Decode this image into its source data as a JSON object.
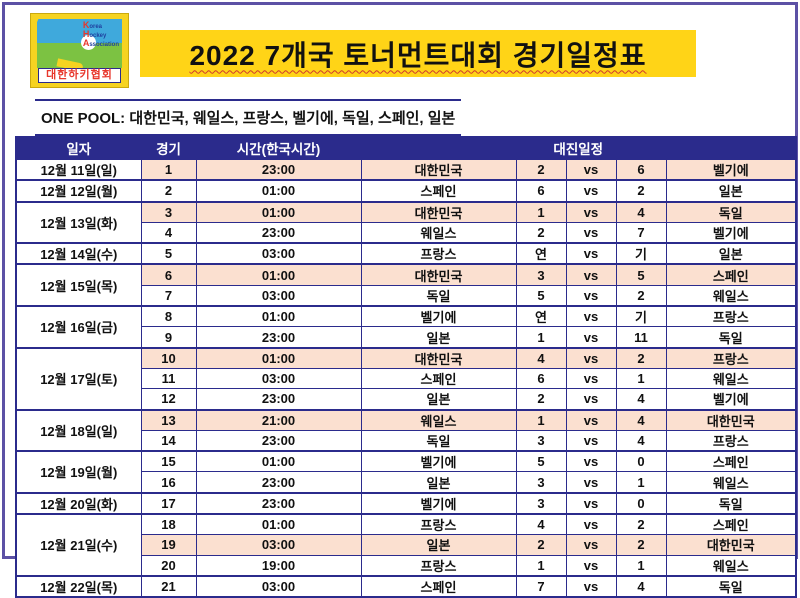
{
  "page": {
    "border_color": "#5c51a5"
  },
  "logo": {
    "org_lines": [
      "Korea",
      "Hockey",
      "Association"
    ],
    "org_name_kr": "대한하키협회",
    "colors": {
      "frame": "#f6d321",
      "sky": "#3fa9dc",
      "green": "#7cc242",
      "text_red": "#e8372c",
      "text_blue": "#1f3f9e"
    }
  },
  "header": {
    "title": "2022 7개국 토너먼트대회 경기일정표",
    "title_bg": "#ffd417"
  },
  "pool": {
    "label": "ONE POOL:",
    "teams": "대한민국, 웨일스, 프랑스, 벨기에, 독일, 스페인, 일본"
  },
  "schedule": {
    "columns": {
      "date": "일자",
      "game": "경기",
      "time": "시간(한국시간)",
      "match": "대진일정"
    },
    "vs": "vs",
    "colors": {
      "header_bg": "#2b2b8c",
      "border": "#2b2b8c",
      "highlight_bg": "#fbe0d0"
    },
    "date_groups": [
      {
        "date": "12월 11일(일)",
        "games": [
          {
            "no": "1",
            "time": "23:00",
            "team1": "대한민국",
            "score1": "2",
            "score2": "6",
            "team2": "벨기에",
            "highlight": true
          }
        ]
      },
      {
        "date": "12월 12일(월)",
        "games": [
          {
            "no": "2",
            "time": "01:00",
            "team1": "스페인",
            "score1": "6",
            "score2": "2",
            "team2": "일본",
            "highlight": false
          }
        ]
      },
      {
        "date": "12월 13일(화)",
        "games": [
          {
            "no": "3",
            "time": "01:00",
            "team1": "대한민국",
            "score1": "1",
            "score2": "4",
            "team2": "독일",
            "highlight": true
          },
          {
            "no": "4",
            "time": "23:00",
            "team1": "웨일스",
            "score1": "2",
            "score2": "7",
            "team2": "벨기에",
            "highlight": false
          }
        ]
      },
      {
        "date": "12월 14일(수)",
        "games": [
          {
            "no": "5",
            "time": "03:00",
            "team1": "프랑스",
            "score1": "연",
            "score2": "기",
            "team2": "일본",
            "highlight": false
          }
        ]
      },
      {
        "date": "12월 15일(목)",
        "games": [
          {
            "no": "6",
            "time": "01:00",
            "team1": "대한민국",
            "score1": "3",
            "score2": "5",
            "team2": "스페인",
            "highlight": true
          },
          {
            "no": "7",
            "time": "03:00",
            "team1": "독일",
            "score1": "5",
            "score2": "2",
            "team2": "웨일스",
            "highlight": false
          }
        ]
      },
      {
        "date": "12월 16일(금)",
        "games": [
          {
            "no": "8",
            "time": "01:00",
            "team1": "벨기에",
            "score1": "연",
            "score2": "기",
            "team2": "프랑스",
            "highlight": false
          },
          {
            "no": "9",
            "time": "23:00",
            "team1": "일본",
            "score1": "1",
            "score2": "11",
            "team2": "독일",
            "highlight": false
          }
        ]
      },
      {
        "date": "12월 17일(토)",
        "games": [
          {
            "no": "10",
            "time": "01:00",
            "team1": "대한민국",
            "score1": "4",
            "score2": "2",
            "team2": "프랑스",
            "highlight": true
          },
          {
            "no": "11",
            "time": "03:00",
            "team1": "스페인",
            "score1": "6",
            "score2": "1",
            "team2": "웨일스",
            "highlight": false
          },
          {
            "no": "12",
            "time": "23:00",
            "team1": "일본",
            "score1": "2",
            "score2": "4",
            "team2": "벨기에",
            "highlight": false
          }
        ]
      },
      {
        "date": "12월 18일(일)",
        "games": [
          {
            "no": "13",
            "time": "21:00",
            "team1": "웨일스",
            "score1": "1",
            "score2": "4",
            "team2": "대한민국",
            "highlight": true
          },
          {
            "no": "14",
            "time": "23:00",
            "team1": "독일",
            "score1": "3",
            "score2": "4",
            "team2": "프랑스",
            "highlight": false
          }
        ]
      },
      {
        "date": "12월 19일(월)",
        "games": [
          {
            "no": "15",
            "time": "01:00",
            "team1": "벨기에",
            "score1": "5",
            "score2": "0",
            "team2": "스페인",
            "highlight": false
          },
          {
            "no": "16",
            "time": "23:00",
            "team1": "일본",
            "score1": "3",
            "score2": "1",
            "team2": "웨일스",
            "highlight": false
          }
        ]
      },
      {
        "date": "12월 20일(화)",
        "games": [
          {
            "no": "17",
            "time": "23:00",
            "team1": "벨기에",
            "score1": "3",
            "score2": "0",
            "team2": "독일",
            "highlight": false
          }
        ]
      },
      {
        "date": "12월 21일(수)",
        "games": [
          {
            "no": "18",
            "time": "01:00",
            "team1": "프랑스",
            "score1": "4",
            "score2": "2",
            "team2": "스페인",
            "highlight": false
          },
          {
            "no": "19",
            "time": "03:00",
            "team1": "일본",
            "score1": "2",
            "score2": "2",
            "team2": "대한민국",
            "highlight": true
          },
          {
            "no": "20",
            "time": "19:00",
            "team1": "프랑스",
            "score1": "1",
            "score2": "1",
            "team2": "웨일스",
            "highlight": false
          }
        ]
      },
      {
        "date": "12월 22일(목)",
        "games": [
          {
            "no": "21",
            "time": "03:00",
            "team1": "스페인",
            "score1": "7",
            "score2": "4",
            "team2": "독일",
            "highlight": false
          }
        ]
      }
    ]
  }
}
